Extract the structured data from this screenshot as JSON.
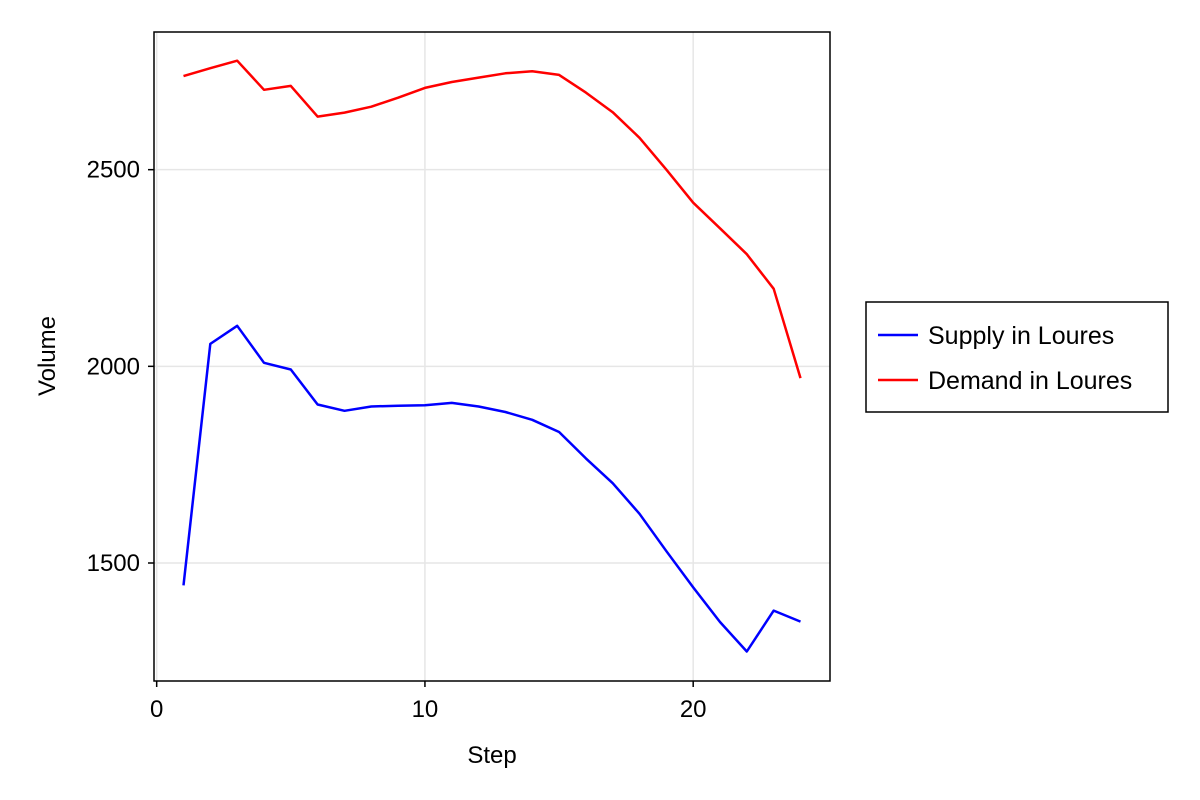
{
  "chart_data": {
    "type": "line",
    "title": "",
    "xlabel": "Step",
    "ylabel": "Volume",
    "xlim": [
      -0.1,
      25.1
    ],
    "ylim": [
      1200,
      2850
    ],
    "xticks": [
      0,
      10,
      20
    ],
    "yticks": [
      1500,
      2000,
      2500
    ],
    "grid": true,
    "legend_position": "right",
    "x": [
      1,
      2,
      3,
      4,
      5,
      6,
      7,
      8,
      9,
      10,
      11,
      12,
      13,
      14,
      15,
      16,
      17,
      18,
      19,
      20,
      21,
      22,
      23,
      24
    ],
    "series": [
      {
        "name": "Supply in Loures",
        "color": "#0000ff",
        "values": [
          1443,
          2057,
          2103,
          2009,
          1992,
          1903,
          1887,
          1898,
          1900,
          1901,
          1907,
          1898,
          1884,
          1864,
          1833,
          1766,
          1703,
          1625,
          1530,
          1438,
          1350,
          1275,
          1379,
          1351
        ]
      },
      {
        "name": "Demand in Loures",
        "color": "#ff0000",
        "values": [
          2738,
          2758,
          2777,
          2703,
          2713,
          2635,
          2645,
          2660,
          2683,
          2708,
          2723,
          2734,
          2745,
          2750,
          2741,
          2696,
          2646,
          2581,
          2500,
          2416,
          2351,
          2285,
          2197,
          1970
        ]
      }
    ]
  }
}
